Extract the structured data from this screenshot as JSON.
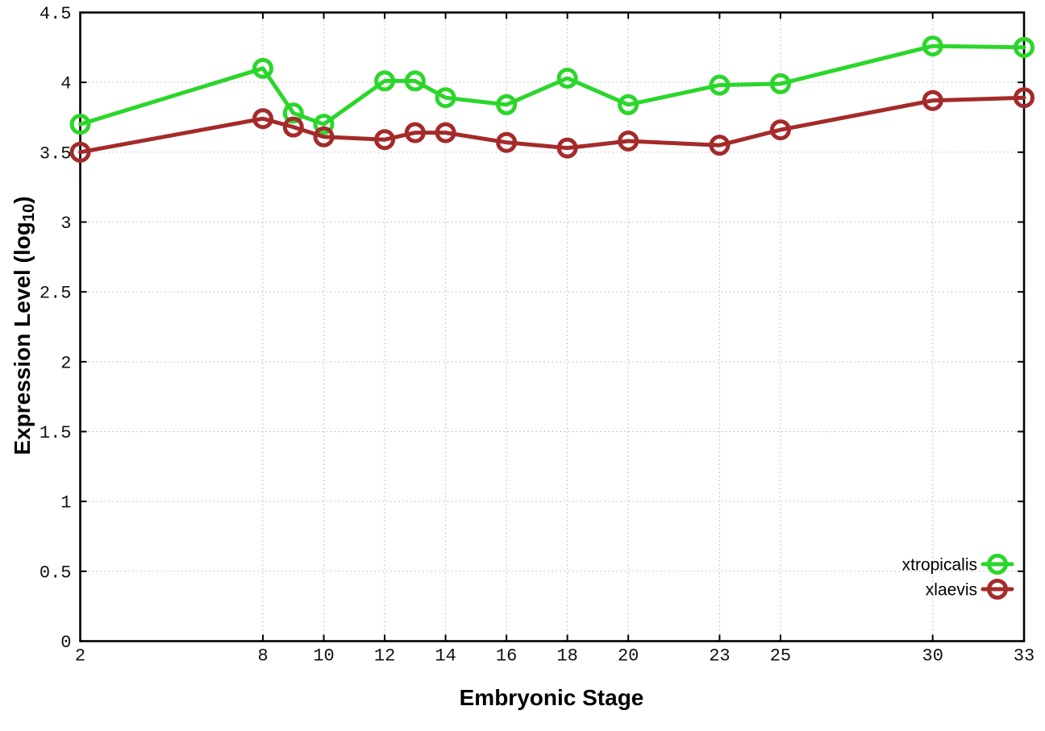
{
  "chart_data": {
    "type": "line",
    "title": "",
    "xlabel": "Embryonic Stage",
    "ylabel": "Expression Level (log10)",
    "ylabel_parts": {
      "prefix": "Expression Level (log",
      "sub": "10",
      "suffix": ")"
    },
    "xlim": [
      2,
      33
    ],
    "ylim": [
      0,
      4.5
    ],
    "x_ticks": [
      2,
      8,
      10,
      12,
      14,
      16,
      18,
      20,
      23,
      25,
      30,
      33
    ],
    "x_tick_labels": [
      "2",
      "8",
      "10",
      "12",
      "14",
      "16",
      "18",
      "20",
      "23",
      "25",
      "30",
      "33"
    ],
    "y_ticks": [
      0,
      0.5,
      1,
      1.5,
      2,
      2.5,
      3,
      3.5,
      4,
      4.5
    ],
    "y_tick_labels": [
      "0",
      "0.5",
      "1",
      "1.5",
      "2",
      "2.5",
      "3",
      "3.5",
      "4",
      "4.5"
    ],
    "grid": "dotted",
    "grid_color": "#b8b8b8",
    "axis_color": "#000000",
    "background": "#ffffff",
    "legend_position": "inside-bottom-right",
    "marker": "open-circle",
    "series": [
      {
        "name": "xtropicalis",
        "color": "#2bd62b",
        "x": [
          2,
          8,
          9,
          10,
          12,
          13,
          14,
          16,
          18,
          20,
          23,
          25,
          30,
          33
        ],
        "y": [
          3.7,
          4.1,
          3.78,
          3.7,
          4.01,
          4.01,
          3.89,
          3.84,
          4.03,
          3.84,
          3.98,
          3.99,
          4.26,
          4.25
        ]
      },
      {
        "name": "xlaevis",
        "color": "#a52a2a",
        "x": [
          2,
          8,
          9,
          10,
          12,
          13,
          14,
          16,
          18,
          20,
          23,
          25,
          30,
          33
        ],
        "y": [
          3.5,
          3.74,
          3.68,
          3.61,
          3.59,
          3.64,
          3.64,
          3.57,
          3.53,
          3.58,
          3.55,
          3.66,
          3.87,
          3.89
        ]
      }
    ]
  }
}
